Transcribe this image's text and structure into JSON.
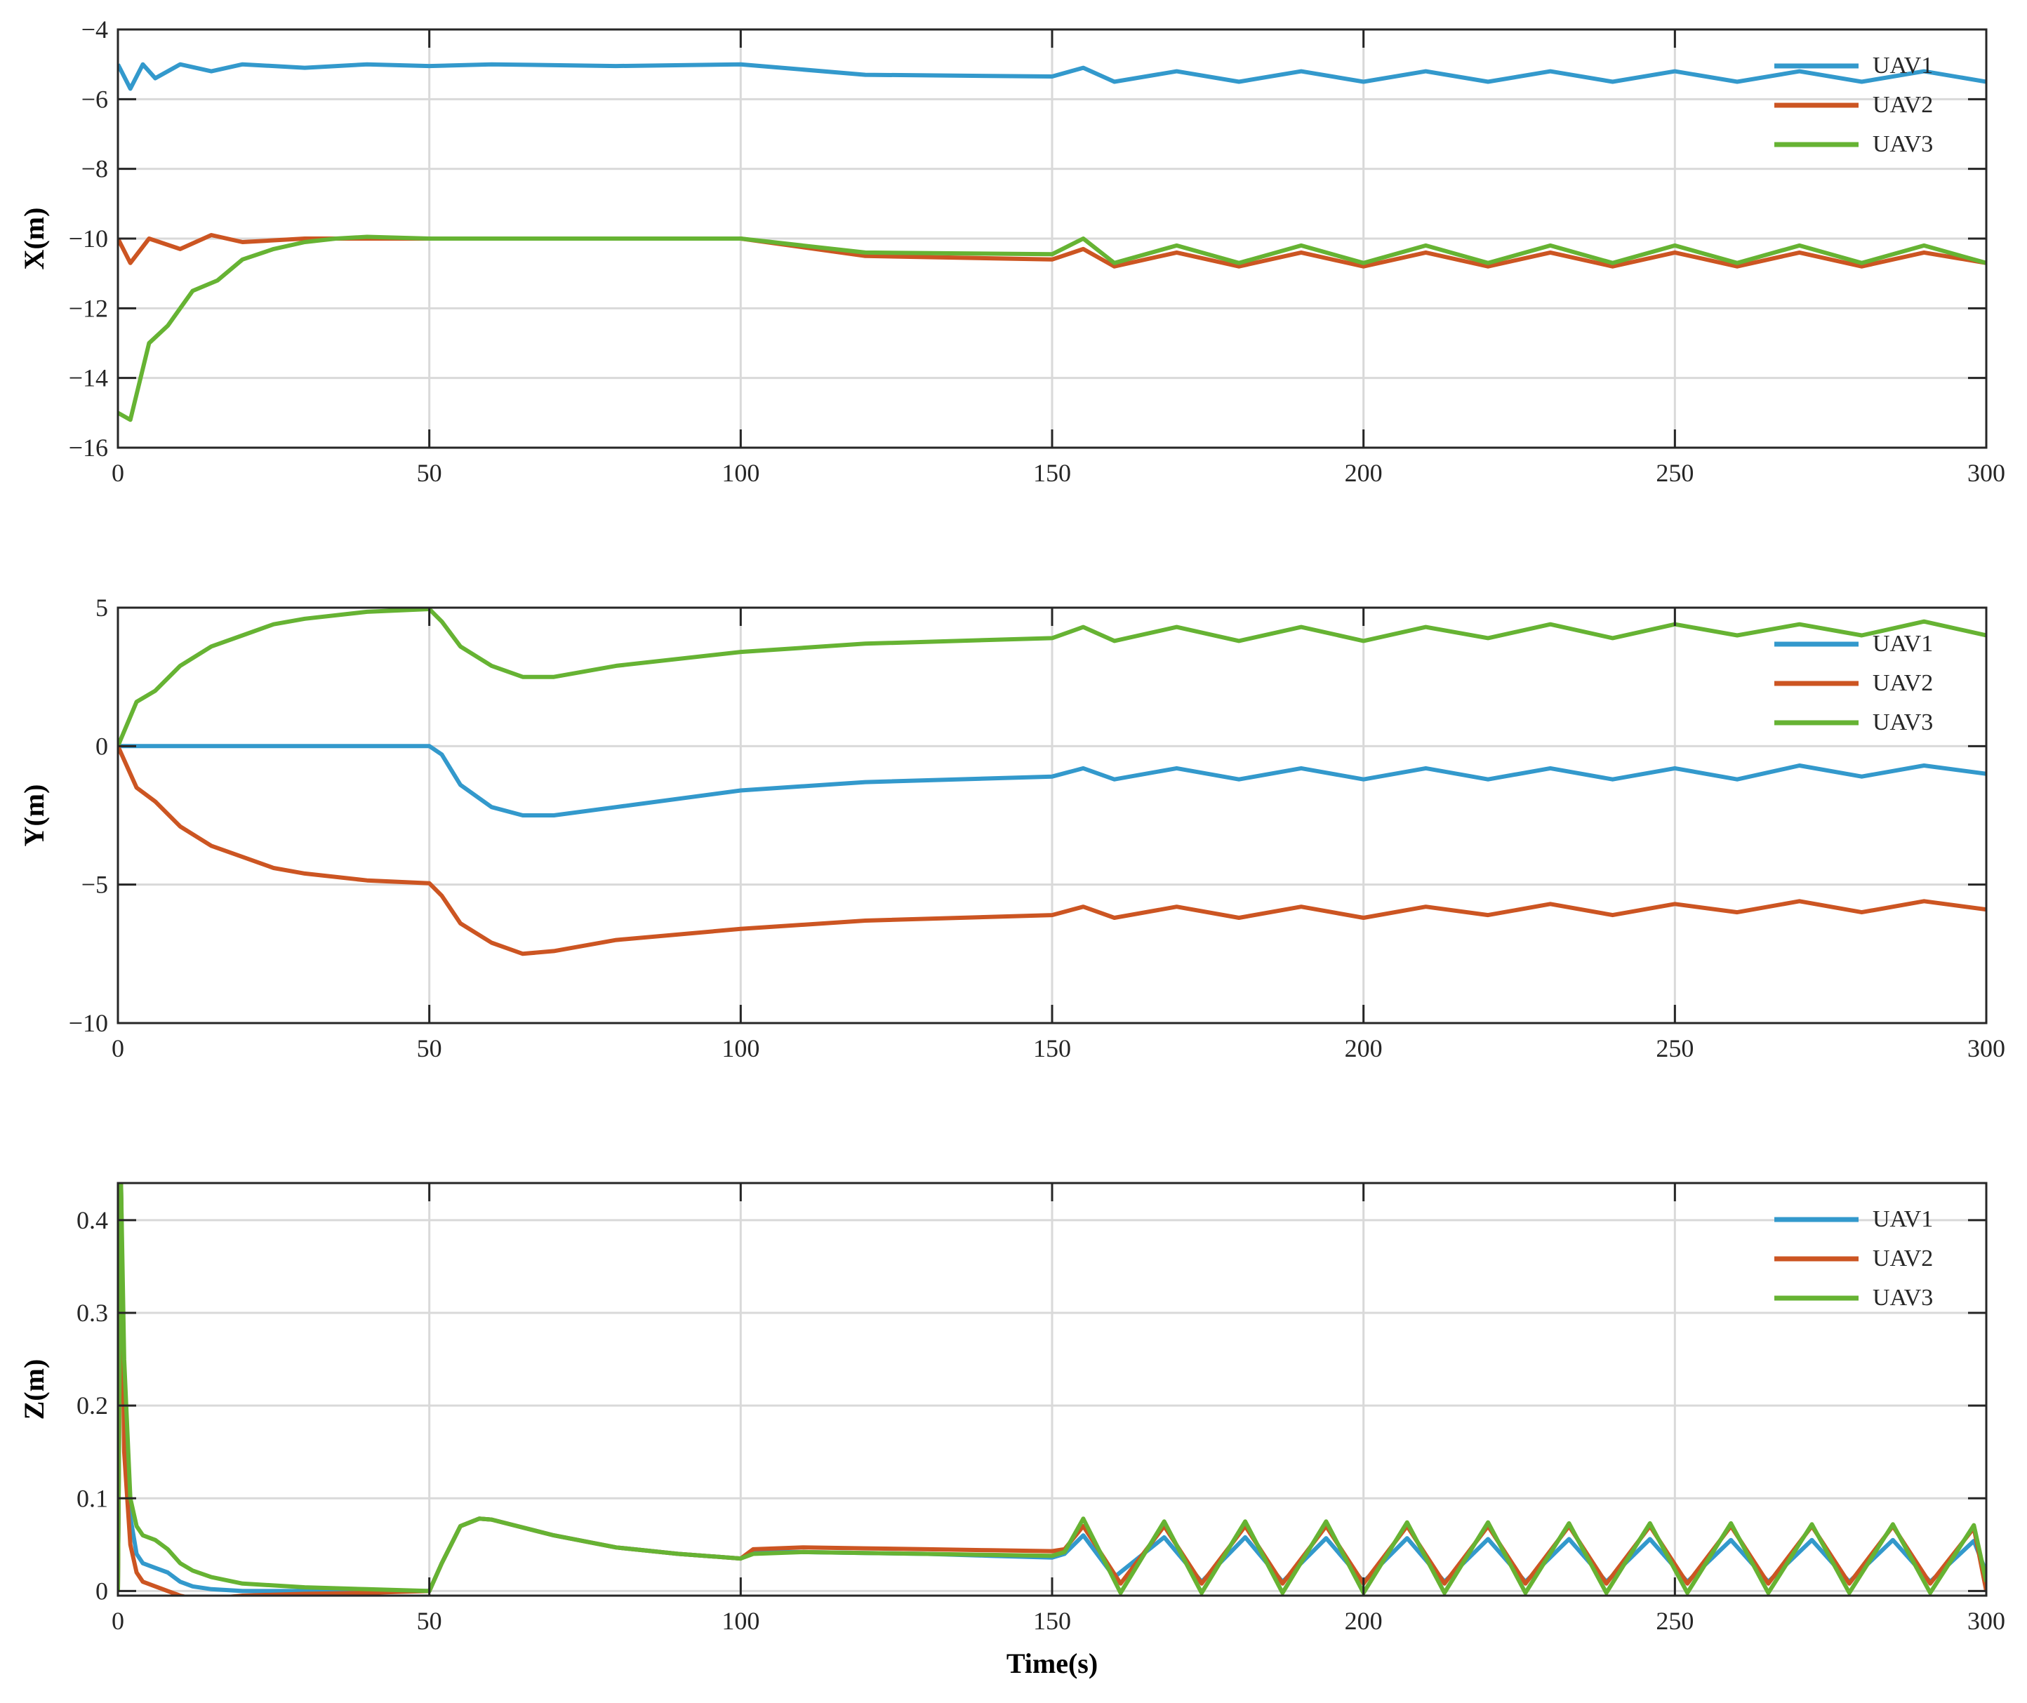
{
  "figure": {
    "colors": {
      "UAV1": "#3399cc",
      "UAV2": "#cc5522",
      "UAV3": "#66b333",
      "grid": "#d9d9d9",
      "axis": "#262626"
    }
  },
  "chart_data": [
    {
      "type": "line",
      "ylabel": "X(m)",
      "xlabel": "",
      "xlim": [
        0,
        300
      ],
      "ylim": [
        -16,
        -4
      ],
      "xticks": [
        "0",
        "50",
        "100",
        "150",
        "200",
        "250",
        "300"
      ],
      "yticks": [
        "−4",
        "−6",
        "−8",
        "−10",
        "−12",
        "−14",
        "−16"
      ],
      "ytick_values": [
        -4,
        -6,
        -8,
        -10,
        -12,
        -14,
        -16
      ],
      "grid": true,
      "legend": "top-right",
      "series": [
        {
          "name": "UAV1",
          "color": "#3399cc",
          "x": [
            0,
            2,
            4,
            6,
            10,
            15,
            20,
            30,
            40,
            50,
            60,
            80,
            100,
            120,
            150,
            155,
            160,
            170,
            180,
            190,
            200,
            210,
            220,
            230,
            240,
            250,
            260,
            270,
            280,
            290,
            300
          ],
          "y": [
            -5.0,
            -5.7,
            -5.0,
            -5.4,
            -5.0,
            -5.2,
            -5.0,
            -5.1,
            -5.0,
            -5.05,
            -5.0,
            -5.05,
            -5.0,
            -5.3,
            -5.35,
            -5.1,
            -5.5,
            -5.2,
            -5.5,
            -5.2,
            -5.5,
            -5.2,
            -5.5,
            -5.2,
            -5.5,
            -5.2,
            -5.5,
            -5.2,
            -5.5,
            -5.2,
            -5.5
          ]
        },
        {
          "name": "UAV2",
          "color": "#cc5522",
          "x": [
            0,
            2,
            5,
            10,
            15,
            20,
            30,
            40,
            50,
            60,
            80,
            100,
            120,
            150,
            155,
            160,
            170,
            180,
            190,
            200,
            210,
            220,
            230,
            240,
            250,
            260,
            270,
            280,
            290,
            300
          ],
          "y": [
            -10.0,
            -10.7,
            -10.0,
            -10.3,
            -9.9,
            -10.1,
            -10.0,
            -10.0,
            -10.0,
            -10.0,
            -10.0,
            -10.0,
            -10.5,
            -10.6,
            -10.3,
            -10.8,
            -10.4,
            -10.8,
            -10.4,
            -10.8,
            -10.4,
            -10.8,
            -10.4,
            -10.8,
            -10.4,
            -10.8,
            -10.4,
            -10.8,
            -10.4,
            -10.7
          ]
        },
        {
          "name": "UAV3",
          "color": "#66b333",
          "x": [
            0,
            2,
            5,
            8,
            12,
            16,
            20,
            25,
            30,
            35,
            40,
            50,
            60,
            80,
            100,
            120,
            150,
            155,
            160,
            170,
            180,
            190,
            200,
            210,
            220,
            230,
            240,
            250,
            260,
            270,
            280,
            290,
            300
          ],
          "y": [
            -15.0,
            -15.2,
            -13.0,
            -12.5,
            -11.5,
            -11.2,
            -10.6,
            -10.3,
            -10.1,
            -10.0,
            -9.95,
            -10.0,
            -10.0,
            -10.0,
            -10.0,
            -10.4,
            -10.45,
            -10.0,
            -10.7,
            -10.2,
            -10.7,
            -10.2,
            -10.7,
            -10.2,
            -10.7,
            -10.2,
            -10.7,
            -10.2,
            -10.7,
            -10.2,
            -10.7,
            -10.2,
            -10.7
          ]
        }
      ]
    },
    {
      "type": "line",
      "ylabel": "Y(m)",
      "xlabel": "",
      "xlim": [
        0,
        300
      ],
      "ylim": [
        -10,
        5
      ],
      "xticks": [
        "0",
        "50",
        "100",
        "150",
        "200",
        "250",
        "300"
      ],
      "yticks": [
        "5",
        "0",
        "−5",
        "−10"
      ],
      "ytick_values": [
        5,
        0,
        -5,
        -10
      ],
      "grid": true,
      "legend": "top-right",
      "series": [
        {
          "name": "UAV1",
          "color": "#3399cc",
          "x": [
            0,
            50,
            52,
            55,
            60,
            65,
            70,
            80,
            100,
            120,
            150,
            155,
            160,
            170,
            180,
            190,
            200,
            210,
            220,
            230,
            240,
            250,
            260,
            270,
            280,
            290,
            300
          ],
          "y": [
            0,
            0,
            -0.3,
            -1.4,
            -2.2,
            -2.5,
            -2.5,
            -2.2,
            -1.6,
            -1.3,
            -1.1,
            -0.8,
            -1.2,
            -0.8,
            -1.2,
            -0.8,
            -1.2,
            -0.8,
            -1.2,
            -0.8,
            -1.2,
            -0.8,
            -1.2,
            -0.7,
            -1.1,
            -0.7,
            -1.0
          ]
        },
        {
          "name": "UAV2",
          "color": "#cc5522",
          "x": [
            0,
            3,
            6,
            10,
            15,
            20,
            25,
            30,
            40,
            50,
            52,
            55,
            60,
            65,
            70,
            80,
            100,
            120,
            150,
            155,
            160,
            170,
            180,
            190,
            200,
            210,
            220,
            230,
            240,
            250,
            260,
            270,
            280,
            290,
            300
          ],
          "y": [
            0,
            -1.5,
            -2.0,
            -2.9,
            -3.6,
            -4.0,
            -4.4,
            -4.6,
            -4.85,
            -4.95,
            -5.4,
            -6.4,
            -7.1,
            -7.5,
            -7.4,
            -7.0,
            -6.6,
            -6.3,
            -6.1,
            -5.8,
            -6.2,
            -5.8,
            -6.2,
            -5.8,
            -6.2,
            -5.8,
            -6.1,
            -5.7,
            -6.1,
            -5.7,
            -6.0,
            -5.6,
            -6.0,
            -5.6,
            -5.9
          ]
        },
        {
          "name": "UAV3",
          "color": "#66b333",
          "x": [
            0,
            3,
            6,
            10,
            15,
            20,
            25,
            30,
            40,
            50,
            52,
            55,
            60,
            65,
            70,
            80,
            100,
            120,
            150,
            155,
            160,
            170,
            180,
            190,
            200,
            210,
            220,
            230,
            240,
            250,
            260,
            270,
            280,
            290,
            300
          ],
          "y": [
            0,
            1.6,
            2.0,
            2.9,
            3.6,
            4.0,
            4.4,
            4.6,
            4.85,
            4.95,
            4.5,
            3.6,
            2.9,
            2.5,
            2.5,
            2.9,
            3.4,
            3.7,
            3.9,
            4.3,
            3.8,
            4.3,
            3.8,
            4.3,
            3.8,
            4.3,
            3.9,
            4.4,
            3.9,
            4.4,
            4.0,
            4.4,
            4.0,
            4.5,
            4.0
          ]
        }
      ]
    },
    {
      "type": "line",
      "ylabel": "Z(m)",
      "xlabel": "Time(s)",
      "xlim": [
        0,
        300
      ],
      "ylim": [
        -0.005,
        0.44
      ],
      "xticks": [
        "0",
        "50",
        "100",
        "150",
        "200",
        "250",
        "300"
      ],
      "yticks": [
        "0.4",
        "0.3",
        "0.2",
        "0.1",
        "0"
      ],
      "ytick_values": [
        0.4,
        0.3,
        0.2,
        0.1,
        0
      ],
      "grid": true,
      "legend": "top-right",
      "series": [
        {
          "name": "UAV1",
          "color": "#3399cc",
          "x": [
            0,
            0.5,
            1,
            2,
            3,
            4,
            6,
            8,
            10,
            12,
            15,
            20,
            30,
            40,
            50,
            52,
            55,
            58,
            60,
            70,
            80,
            90,
            100,
            102,
            110,
            120,
            130,
            140,
            150,
            152,
            155,
            160,
            168,
            174,
            181,
            187,
            194,
            200,
            207,
            213,
            220,
            226,
            233,
            239,
            246,
            252,
            259,
            265,
            272,
            278,
            285,
            291,
            298,
            300
          ],
          "y": [
            0,
            0.44,
            0.2,
            0.08,
            0.04,
            0.03,
            0.025,
            0.02,
            0.01,
            0.005,
            0.002,
            0.0,
            0.0,
            0.0,
            0.0,
            0.03,
            0.07,
            0.078,
            0.077,
            0.06,
            0.047,
            0.04,
            0.035,
            0.042,
            0.042,
            0.041,
            0.04,
            0.038,
            0.036,
            0.04,
            0.06,
            0.015,
            0.058,
            0.01,
            0.058,
            0.01,
            0.057,
            0.01,
            0.057,
            0.01,
            0.056,
            0.01,
            0.056,
            0.01,
            0.056,
            0.01,
            0.055,
            0.01,
            0.055,
            0.01,
            0.055,
            0.01,
            0.054,
            0.02
          ]
        },
        {
          "name": "UAV2",
          "color": "#cc5522",
          "x": [
            0,
            0.5,
            1,
            2,
            3,
            4,
            6,
            8,
            10,
            12,
            15,
            20,
            30,
            40,
            50,
            52,
            55,
            58,
            60,
            70,
            80,
            90,
            100,
            102,
            110,
            120,
            130,
            140,
            150,
            152,
            155,
            161,
            168,
            174,
            181,
            187,
            194,
            200,
            207,
            213,
            220,
            226,
            233,
            239,
            246,
            252,
            259,
            265,
            272,
            278,
            285,
            291,
            298,
            300
          ],
          "y": [
            0,
            0.44,
            0.15,
            0.05,
            0.02,
            0.01,
            0.005,
            0.0,
            -0.005,
            -0.008,
            -0.008,
            -0.005,
            -0.003,
            -0.002,
            0.0,
            0.03,
            0.07,
            0.078,
            0.077,
            0.06,
            0.047,
            0.04,
            0.035,
            0.045,
            0.047,
            0.046,
            0.045,
            0.044,
            0.043,
            0.045,
            0.07,
            0.008,
            0.07,
            0.008,
            0.07,
            0.008,
            0.07,
            0.008,
            0.07,
            0.008,
            0.07,
            0.008,
            0.07,
            0.008,
            0.07,
            0.008,
            0.07,
            0.008,
            0.07,
            0.008,
            0.07,
            0.008,
            0.068,
            0.0
          ]
        },
        {
          "name": "UAV3",
          "color": "#66b333",
          "x": [
            0,
            0.5,
            1,
            2,
            3,
            4,
            6,
            8,
            10,
            12,
            15,
            20,
            30,
            40,
            50,
            52,
            55,
            58,
            60,
            70,
            80,
            90,
            100,
            102,
            110,
            120,
            130,
            140,
            150,
            152,
            155,
            161,
            168,
            174,
            181,
            187,
            194,
            200,
            207,
            213,
            220,
            226,
            233,
            239,
            246,
            252,
            259,
            265,
            272,
            278,
            285,
            291,
            298,
            300
          ],
          "y": [
            0,
            0.44,
            0.25,
            0.1,
            0.07,
            0.06,
            0.055,
            0.045,
            0.03,
            0.022,
            0.015,
            0.008,
            0.004,
            0.002,
            0.0,
            0.03,
            0.07,
            0.078,
            0.077,
            0.06,
            0.047,
            0.04,
            0.035,
            0.04,
            0.042,
            0.041,
            0.04,
            0.039,
            0.038,
            0.042,
            0.078,
            -0.002,
            0.075,
            -0.002,
            0.075,
            -0.002,
            0.075,
            -0.002,
            0.074,
            -0.002,
            0.074,
            -0.002,
            0.073,
            -0.002,
            0.073,
            -0.002,
            0.073,
            -0.002,
            0.072,
            -0.002,
            0.072,
            -0.002,
            0.071,
            0.01
          ]
        }
      ]
    }
  ]
}
